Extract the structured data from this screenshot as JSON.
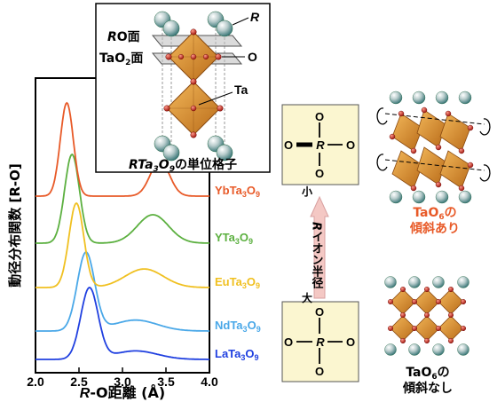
{
  "chart_data": {
    "type": "line",
    "title": "",
    "xlabel_prefix": "R",
    "xlabel_rest": "-O距離 (Å)",
    "ylabel": "動径分布関数 [R-O]",
    "xlim": [
      2.0,
      4.0
    ],
    "xticks": [
      "2.0",
      "2.5",
      "3.0",
      "3.5",
      "4.0"
    ],
    "series": [
      {
        "name": "LaTa3O9",
        "display": [
          "LaTa",
          "3",
          "O",
          "9"
        ],
        "color": "#2040e0",
        "offset": 0,
        "peaks": [
          [
            2.62,
            1.0,
            0.1
          ],
          [
            3.15,
            0.12,
            0.25
          ]
        ]
      },
      {
        "name": "NdTa3O9",
        "display": [
          "NdTa",
          "3",
          "O",
          "9"
        ],
        "color": "#4aa8e8",
        "offset": 1,
        "peaks": [
          [
            2.58,
            1.0,
            0.1
          ],
          [
            3.15,
            0.14,
            0.25
          ]
        ]
      },
      {
        "name": "EuTa3O9",
        "display": [
          "EuTa",
          "3",
          "O",
          "9"
        ],
        "color": "#f0c020",
        "offset": 2,
        "peaks": [
          [
            2.47,
            1.0,
            0.085
          ],
          [
            3.25,
            0.22,
            0.22
          ]
        ]
      },
      {
        "name": "YTa3O9",
        "display": [
          "YTa",
          "3",
          "O",
          "9"
        ],
        "color": "#5cb040",
        "offset": 3,
        "peaks": [
          [
            2.42,
            1.0,
            0.085
          ],
          [
            3.35,
            0.32,
            0.18
          ]
        ]
      },
      {
        "name": "YbTa3O9",
        "display": [
          "YbTa",
          "3",
          "O",
          "9"
        ],
        "color": "#e85a28",
        "offset": 4,
        "peaks": [
          [
            2.36,
            1.0,
            0.075
          ],
          [
            3.43,
            0.38,
            0.11
          ]
        ]
      }
    ]
  },
  "inset": {
    "ro_plane": "RO面",
    "tao2_plane_main": "TaO",
    "tao2_plane_sub": "2",
    "tao2_plane_rest": "面",
    "label_r": "R",
    "label_o": "O",
    "label_ta": "Ta",
    "caption": [
      "RTa",
      "3",
      "O",
      "9",
      "の単位格子"
    ]
  },
  "radius_arrow": {
    "small": "小",
    "large": "大",
    "label": "Rイオン半径"
  },
  "structures": {
    "tilted_caption_line1": [
      "TaO",
      "6",
      "の"
    ],
    "tilted_caption_line2": "傾斜あり",
    "untilted_caption_line1": [
      "TaO",
      "6",
      "の"
    ],
    "untilted_caption_line2": "傾斜なし"
  },
  "colors": {
    "accent_orange": "#e85a28",
    "octahedron": "#e09a3a",
    "box_fill": "#fbf6d0",
    "arrow_fill": "#f4c8c4"
  }
}
